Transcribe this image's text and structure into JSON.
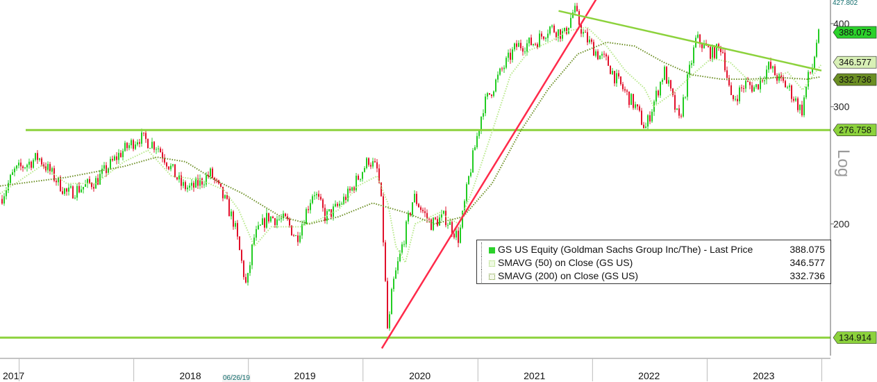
{
  "chart_data": {
    "type": "line",
    "scale": "log",
    "title": "",
    "x_axis": {
      "start": "2016-11-01",
      "end": "2023-12-31",
      "year_labels": [
        "2017",
        "2018",
        "2019",
        "2020",
        "2021",
        "2022",
        "2023"
      ]
    },
    "y_axis": {
      "label": "Log",
      "range": [
        128,
        432
      ],
      "ticks": [
        200,
        300,
        400
      ],
      "max_label": "427.802"
    },
    "date_marker": "06/26/19",
    "grid": false,
    "legend_position": "bottom-right",
    "series": [
      {
        "name": "GS US Equity (Goldman Sachs Group Inc/The) - Last Price",
        "last_value": "388.075",
        "color": "#2bd12b",
        "style": "candlestick",
        "points": [
          [
            "2016-11-01",
            218
          ],
          [
            "2016-12-15",
            240
          ],
          [
            "2017-03-01",
            252
          ],
          [
            "2017-06-01",
            222
          ],
          [
            "2017-09-01",
            232
          ],
          [
            "2017-11-15",
            255
          ],
          [
            "2018-01-15",
            270
          ],
          [
            "2018-03-15",
            262
          ],
          [
            "2018-04-15",
            248
          ],
          [
            "2018-06-01",
            228
          ],
          [
            "2018-07-01",
            226
          ],
          [
            "2018-09-01",
            238
          ],
          [
            "2018-10-20",
            215
          ],
          [
            "2018-11-15",
            200
          ],
          [
            "2018-12-24",
            160
          ],
          [
            "2019-01-15",
            190
          ],
          [
            "2019-03-01",
            205
          ],
          [
            "2019-05-01",
            202
          ],
          [
            "2019-06-01",
            190
          ],
          [
            "2019-07-26",
            225
          ],
          [
            "2019-09-01",
            205
          ],
          [
            "2019-10-01",
            210
          ],
          [
            "2019-11-15",
            222
          ],
          [
            "2020-01-17",
            250
          ],
          [
            "2020-02-15",
            240
          ],
          [
            "2020-02-28",
            210
          ],
          [
            "2020-03-18",
            135
          ],
          [
            "2020-04-01",
            160
          ],
          [
            "2020-06-08",
            220
          ],
          [
            "2020-08-01",
            200
          ],
          [
            "2020-09-15",
            205
          ],
          [
            "2020-10-30",
            190
          ],
          [
            "2020-12-01",
            235
          ],
          [
            "2021-01-15",
            300
          ],
          [
            "2021-03-15",
            340
          ],
          [
            "2021-05-01",
            370
          ],
          [
            "2021-07-01",
            375
          ],
          [
            "2021-08-15",
            395
          ],
          [
            "2021-10-01",
            385
          ],
          [
            "2021-11-01",
            420
          ],
          [
            "2021-12-01",
            385
          ],
          [
            "2022-01-15",
            360
          ],
          [
            "2022-02-15",
            350
          ],
          [
            "2022-03-15",
            330
          ],
          [
            "2022-05-15",
            300
          ],
          [
            "2022-06-16",
            278
          ],
          [
            "2022-08-15",
            340
          ],
          [
            "2022-10-01",
            285
          ],
          [
            "2022-11-25",
            380
          ],
          [
            "2023-01-15",
            360
          ],
          [
            "2023-02-15",
            370
          ],
          [
            "2023-03-17",
            305
          ],
          [
            "2023-05-01",
            325
          ],
          [
            "2023-06-01",
            320
          ],
          [
            "2023-07-15",
            345
          ],
          [
            "2023-08-15",
            330
          ],
          [
            "2023-09-15",
            320
          ],
          [
            "2023-10-27",
            295
          ],
          [
            "2023-11-15",
            330
          ],
          [
            "2023-12-01",
            345
          ],
          [
            "2023-12-15",
            380
          ],
          [
            "2023-12-29",
            388.075
          ]
        ]
      },
      {
        "name": "SMAVG (50)  on Close (GS US)",
        "last_value": "346.577",
        "color": "#b7e88a",
        "style": "dotted",
        "points": [
          [
            "2016-11-01",
            222
          ],
          [
            "2017-01-01",
            232
          ],
          [
            "2017-03-15",
            245
          ],
          [
            "2017-06-01",
            230
          ],
          [
            "2017-09-01",
            230
          ],
          [
            "2017-12-01",
            248
          ],
          [
            "2018-02-15",
            258
          ],
          [
            "2018-05-01",
            236
          ],
          [
            "2018-08-01",
            233
          ],
          [
            "2018-10-15",
            225
          ],
          [
            "2018-12-01",
            210
          ],
          [
            "2019-01-20",
            185
          ],
          [
            "2019-03-15",
            198
          ],
          [
            "2019-06-15",
            198
          ],
          [
            "2019-08-15",
            203
          ],
          [
            "2019-10-15",
            210
          ],
          [
            "2019-12-15",
            228
          ],
          [
            "2020-02-15",
            236
          ],
          [
            "2020-03-20",
            215
          ],
          [
            "2020-04-15",
            185
          ],
          [
            "2020-05-15",
            175
          ],
          [
            "2020-06-15",
            200
          ],
          [
            "2020-09-01",
            208
          ],
          [
            "2020-11-01",
            200
          ],
          [
            "2020-12-15",
            225
          ],
          [
            "2021-02-15",
            275
          ],
          [
            "2021-04-15",
            335
          ],
          [
            "2021-06-15",
            365
          ],
          [
            "2021-08-15",
            375
          ],
          [
            "2021-10-15",
            390
          ],
          [
            "2021-12-15",
            395
          ],
          [
            "2022-02-15",
            370
          ],
          [
            "2022-04-15",
            340
          ],
          [
            "2022-06-15",
            320
          ],
          [
            "2022-07-15",
            300
          ],
          [
            "2022-09-15",
            315
          ],
          [
            "2022-11-15",
            335
          ],
          [
            "2023-01-15",
            355
          ],
          [
            "2023-03-15",
            350
          ],
          [
            "2023-05-15",
            328
          ],
          [
            "2023-07-15",
            330
          ],
          [
            "2023-09-15",
            338
          ],
          [
            "2023-11-01",
            318
          ],
          [
            "2023-12-29",
            346.577
          ]
        ]
      },
      {
        "name": "SMAVG (200)  on Close (GS US)",
        "last_value": "332.736",
        "color": "#6b8e23",
        "style": "dotted",
        "points": [
          [
            "2016-11-01",
            228
          ],
          [
            "2017-06-01",
            235
          ],
          [
            "2017-12-01",
            244
          ],
          [
            "2018-03-15",
            252
          ],
          [
            "2018-06-15",
            248
          ],
          [
            "2018-09-15",
            233
          ],
          [
            "2018-12-15",
            222
          ],
          [
            "2019-04-15",
            205
          ],
          [
            "2019-07-15",
            200
          ],
          [
            "2019-10-15",
            205
          ],
          [
            "2020-02-01",
            215
          ],
          [
            "2020-05-15",
            208
          ],
          [
            "2020-08-15",
            200
          ],
          [
            "2020-11-15",
            205
          ],
          [
            "2021-02-15",
            230
          ],
          [
            "2021-05-15",
            275
          ],
          [
            "2021-08-15",
            320
          ],
          [
            "2021-11-15",
            360
          ],
          [
            "2022-02-15",
            375
          ],
          [
            "2022-05-15",
            370
          ],
          [
            "2022-08-15",
            350
          ],
          [
            "2022-11-15",
            335
          ],
          [
            "2023-02-15",
            330
          ],
          [
            "2023-05-15",
            330
          ],
          [
            "2023-08-15",
            332
          ],
          [
            "2023-11-15",
            330
          ],
          [
            "2023-12-29",
            332.736
          ]
        ]
      }
    ],
    "horizontal_lines": [
      {
        "value": 276.758,
        "label": "276.758",
        "color": "#8cd23c"
      },
      {
        "value": 134.914,
        "label": "134.914",
        "color": "#8cd23c"
      }
    ],
    "trend_lines": [
      {
        "name": "uptrend",
        "color": "#ff2a4a",
        "from": [
          "2020-03-01",
          130
        ],
        "to": [
          "2022-04-01",
          500
        ]
      },
      {
        "name": "downtrend",
        "color": "#8cd23c",
        "from": [
          "2021-09-15",
          418
        ],
        "to": [
          "2023-12-31",
          340
        ]
      }
    ],
    "price_tags": [
      {
        "label": "388.075",
        "value": 388.075,
        "color": "#2bd12b"
      },
      {
        "label": "346.577",
        "value": 346.577,
        "color": "#d8f0b6"
      },
      {
        "label": "332.736",
        "value": 332.736,
        "color": "#6b8e23"
      }
    ],
    "legend_rows": [
      {
        "label": "GS US Equity (Goldman Sachs Group Inc/The) - Last Price",
        "value": "388.075",
        "color": "#2bd12b"
      },
      {
        "label": "SMAVG (50)  on Close (GS US)",
        "value": "346.577",
        "color": "#d8f0b6"
      },
      {
        "label": "SMAVG (200)  on Close (GS US)",
        "value": "332.736",
        "color": "#6b8e23"
      }
    ]
  }
}
